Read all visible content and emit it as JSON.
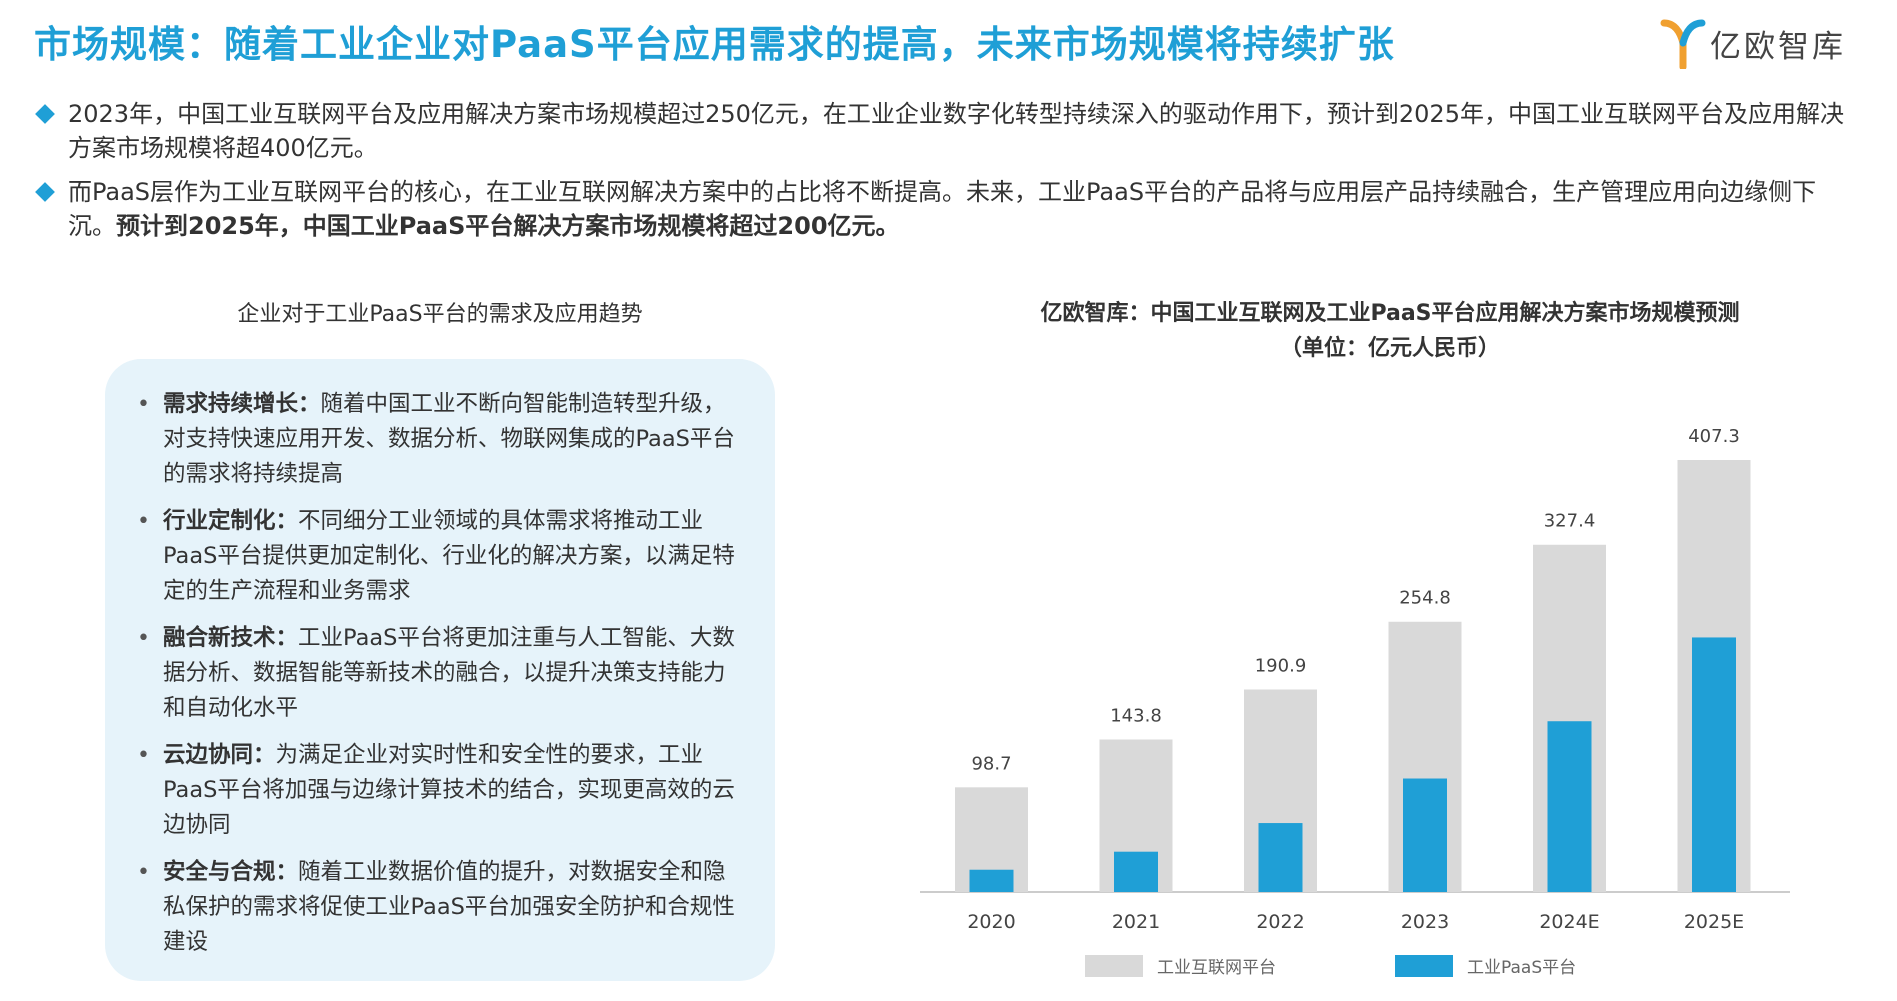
{
  "page": {
    "title": "市场规模：随着工业企业对PaaS平台应用需求的提高，未来市场规模将持续扩张",
    "logo_text": "亿欧智库"
  },
  "bullets": [
    {
      "text": "2023年，中国工业互联网平台及应用解决方案市场规模超过250亿元，在工业企业数字化转型持续深入的驱动作用下，预计到2025年，中国工业互联网平台及应用解决方案市场规模将超400亿元。"
    },
    {
      "text": "而PaaS层作为工业互联网平台的核心，在工业互联网解决方案中的占比将不断提高。未来，工业PaaS平台的产品将与应用层产品持续融合，生产管理应用向边缘侧下沉。",
      "bold_text": "预计到2025年，中国工业PaaS平台解决方案市场规模将超过200亿元。"
    }
  ],
  "left_panel": {
    "title": "企业对于工业PaaS平台的需求及应用趋势",
    "items": [
      {
        "head": "需求持续增长：",
        "body": "随着中国工业不断向智能制造转型升级，对支持快速应用开发、数据分析、物联网集成的PaaS平台的需求将持续提高"
      },
      {
        "head": "行业定制化：",
        "body": "不同细分工业领域的具体需求将推动工业PaaS平台提供更加定制化、行业化的解决方案，以满足特定的生产流程和业务需求"
      },
      {
        "head": "融合新技术：",
        "body": "工业PaaS平台将更加注重与人工智能、大数据分析、数据智能等新技术的融合，以提升决策支持能力和自动化水平"
      },
      {
        "head": "云边协同：",
        "body": "为满足企业对实时性和安全性的要求，工业PaaS平台将加强与边缘计算技术的结合，实现更高效的云边协同"
      },
      {
        "head": "安全与合规：",
        "body": "随着工业数据价值的提升，对数据安全和隐私保护的需求将促使工业PaaS平台加强安全防护和合规性建设"
      }
    ]
  },
  "chart_data": {
    "type": "bar",
    "title": "亿欧智库：中国工业互联网及工业PaaS平台应用解决方案市场规模预测",
    "subtitle": "（单位：亿元人民币）",
    "categories": [
      "2020",
      "2021",
      "2022",
      "2023",
      "2024E",
      "2025E"
    ],
    "series": [
      {
        "name": "工业互联网平台",
        "values": [
          98.7,
          143.8,
          190.9,
          254.8,
          327.4,
          407.3
        ],
        "color": "#d9d9d9",
        "labels": [
          "98.7",
          "143.8",
          "190.9",
          "254.8",
          "327.4",
          "407.3"
        ]
      },
      {
        "name": "工业PaaS平台",
        "values": [
          21,
          38,
          65,
          107,
          161,
          240
        ],
        "color": "#1f9fd6"
      }
    ],
    "ylim": [
      0,
      407.3
    ],
    "grid": false,
    "legend": "bottom"
  }
}
